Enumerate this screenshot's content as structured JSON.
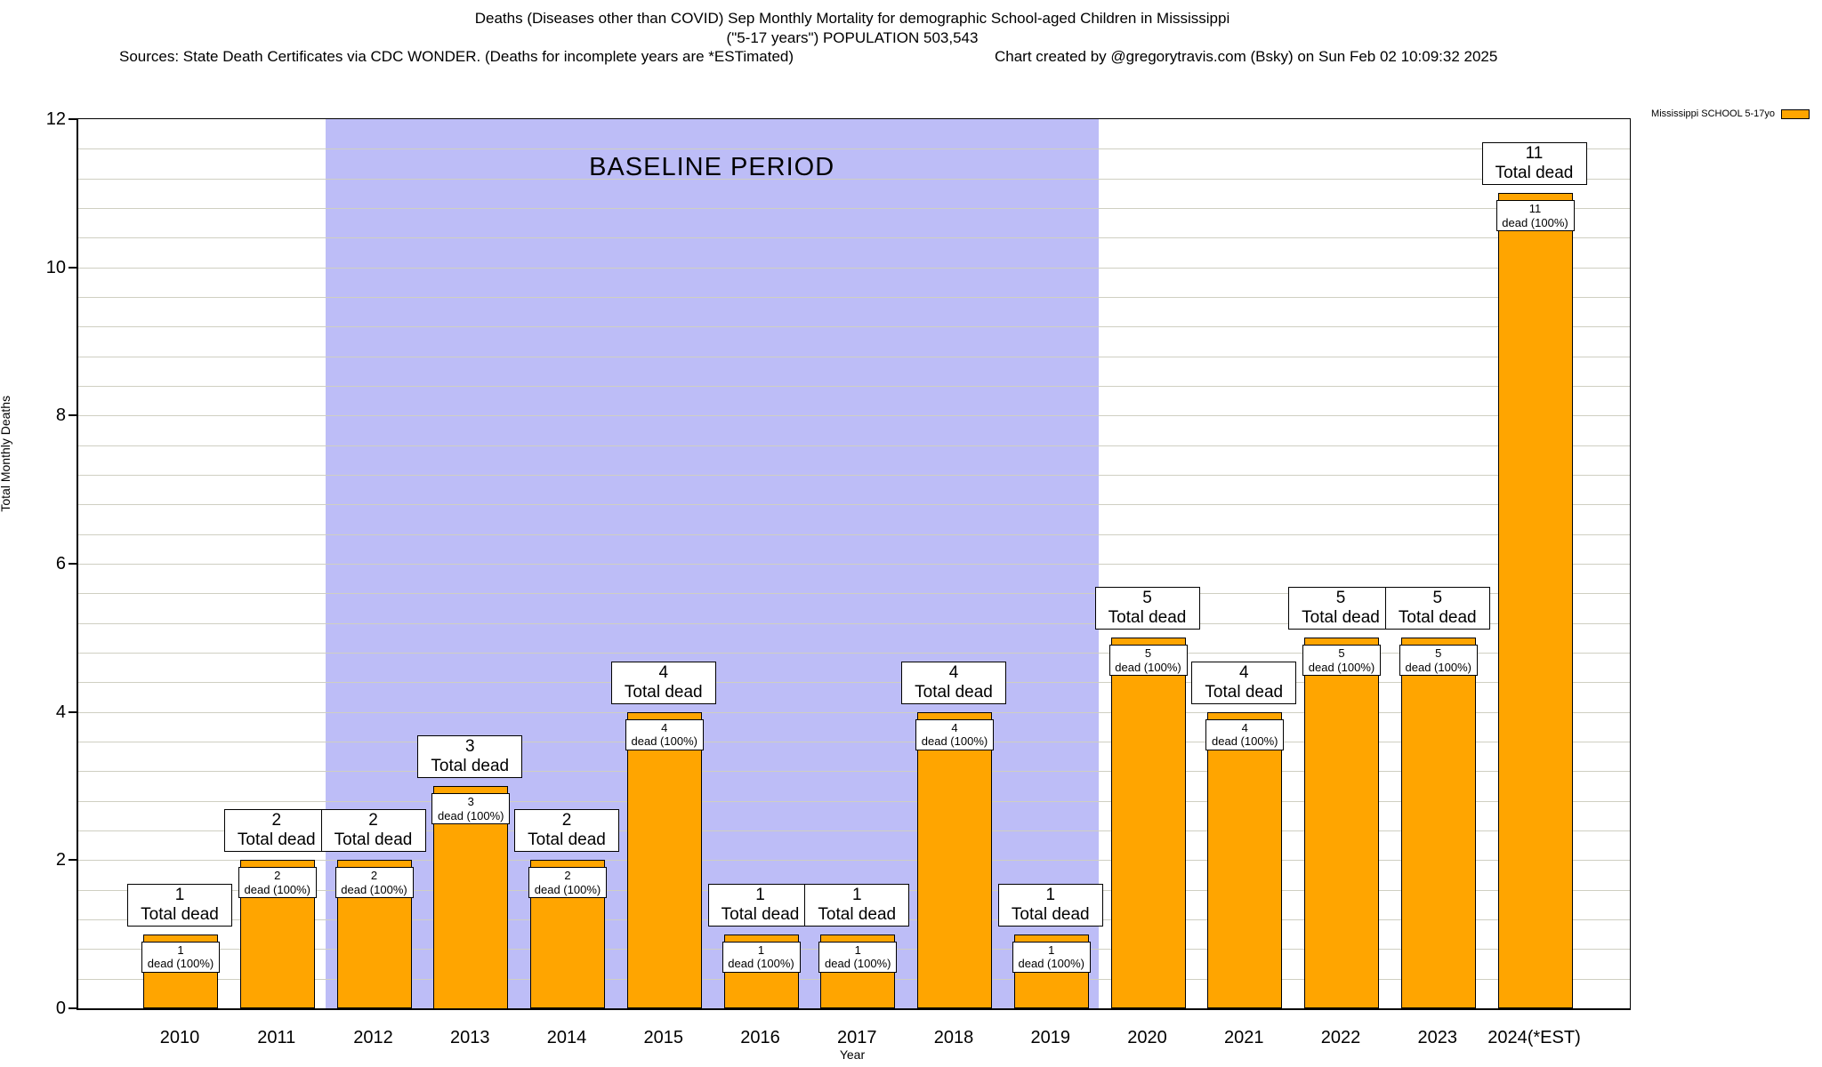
{
  "header": {
    "title_line1": "Deaths (Diseases other than COVID) Sep Monthly Mortality for demographic School-aged Children in Mississippi",
    "title_line2": "(\"5-17 years\") POPULATION 503,543",
    "sources": "Sources: State Death Certificates via CDC WONDER. (Deaths for incomplete years are *ESTimated)",
    "credit": "Chart created by @gregorytravis.com (Bsky) on Sun Feb 02 10:09:32 2025"
  },
  "legend": {
    "label": "Mississippi SCHOOL 5-17yo",
    "swatch_color": "#FFA500"
  },
  "chart_data": {
    "type": "bar",
    "title": "Deaths (Diseases other than COVID) Sep Monthly Mortality for demographic School-aged Children in Mississippi (\"5-17 years\") POPULATION 503,543",
    "xlabel": "Year",
    "ylabel": "Total Monthly Deaths",
    "ylim": [
      0,
      12
    ],
    "ytick_interval": 2,
    "minor_grid_interval": 0.4,
    "grid": true,
    "legend_position": "top-right",
    "categories": [
      "2010",
      "2011",
      "2012",
      "2013",
      "2014",
      "2015",
      "2016",
      "2017",
      "2018",
      "2019",
      "2020",
      "2021",
      "2022",
      "2023",
      "2024(*EST)"
    ],
    "values": [
      1,
      2,
      2,
      3,
      2,
      4,
      1,
      1,
      4,
      1,
      5,
      4,
      5,
      5,
      11
    ],
    "series_name": "Mississippi SCHOOL 5-17yo",
    "bar_color": "#FFA500",
    "bar_top_label_suffix": "Total dead",
    "bar_inner_label_suffix": "dead (100%)",
    "baseline_band": {
      "label": "BASELINE PERIOD",
      "start_category": "2012",
      "end_category": "2019",
      "color": "#bdbdf7"
    }
  }
}
